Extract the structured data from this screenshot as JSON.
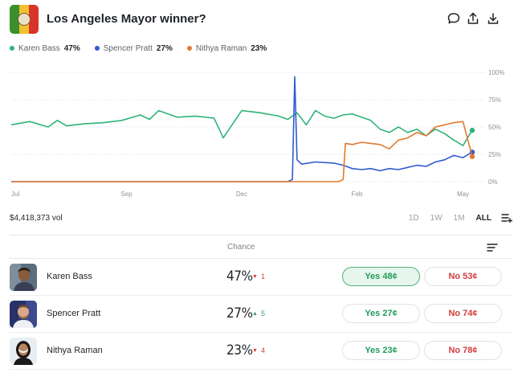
{
  "header": {
    "title": "Los Angeles Mayor winner?",
    "icons": [
      "flag-icon",
      "comment-icon",
      "share-icon",
      "download-icon"
    ]
  },
  "legend": [
    {
      "name": "Karen Bass",
      "value": "47%",
      "color": "#2fb37a"
    },
    {
      "name": "Spencer Pratt",
      "value": "27%",
      "color": "#2f5bd0"
    },
    {
      "name": "Nithya Raman",
      "value": "23%",
      "color": "#e07a2e"
    }
  ],
  "chart_data": {
    "type": "line",
    "x_tick_labels": [
      "Jul",
      "Sep",
      "Dec",
      "Feb",
      "May"
    ],
    "y_tick_labels": [
      "100%",
      "75%",
      "50%",
      "25%",
      "0%"
    ],
    "ylim": [
      0,
      100
    ],
    "grid": true,
    "series": [
      {
        "name": "Karen Bass",
        "color": "#2fb37a",
        "x": [
          0,
          4,
          8,
          10,
          12,
          16,
          20,
          24,
          28,
          30,
          32,
          36,
          40,
          44,
          46,
          50,
          54,
          58,
          60,
          62,
          64,
          66,
          68,
          70,
          72,
          74,
          78,
          80,
          82,
          84,
          86,
          88,
          90,
          92,
          94,
          96,
          98,
          100
        ],
        "values": [
          52,
          55,
          50,
          56,
          51,
          53,
          54,
          56,
          61,
          57,
          65,
          59,
          60,
          58,
          40,
          65,
          63,
          60,
          57,
          63,
          52,
          65,
          60,
          58,
          61,
          62,
          56,
          48,
          45,
          50,
          45,
          48,
          42,
          48,
          44,
          38,
          33,
          47
        ]
      },
      {
        "name": "Spencer Pratt",
        "color": "#2f5bd0",
        "x": [
          0,
          60,
          61,
          61.5,
          62,
          63,
          66,
          70,
          72,
          74,
          76,
          78,
          80,
          82,
          84,
          86,
          88,
          90,
          92,
          94,
          96,
          98,
          100
        ],
        "values": [
          0,
          0,
          2,
          96,
          20,
          16,
          18,
          17,
          15,
          12,
          11,
          12,
          10,
          12,
          11,
          13,
          15,
          14,
          18,
          20,
          24,
          22,
          27
        ]
      },
      {
        "name": "Nithya Raman",
        "color": "#e07a2e",
        "x": [
          0,
          71,
          72,
          72.5,
          74,
          76,
          78,
          80,
          82,
          84,
          86,
          88,
          90,
          92,
          94,
          96,
          98,
          100
        ],
        "values": [
          0,
          0,
          2,
          35,
          34,
          36,
          35,
          34,
          30,
          38,
          40,
          45,
          42,
          50,
          52,
          54,
          55,
          23
        ]
      }
    ]
  },
  "volume": "$4,418,373 vol",
  "ranges": [
    "1D",
    "1W",
    "1M",
    "ALL"
  ],
  "active_range": "ALL",
  "table": {
    "column_header": "Chance",
    "rows": [
      {
        "name": "Karen Bass",
        "chance": "47%",
        "delta": "1",
        "direction": "down",
        "yes": "Yes 48¢",
        "no": "No 53¢",
        "yes_selected": true
      },
      {
        "name": "Spencer Pratt",
        "chance": "27%",
        "delta": "5",
        "direction": "up",
        "yes": "Yes 27¢",
        "no": "No 74¢",
        "yes_selected": false
      },
      {
        "name": "Nithya Raman",
        "chance": "23%",
        "delta": "4",
        "direction": "down",
        "yes": "Yes 23¢",
        "no": "No 78¢",
        "yes_selected": false
      }
    ]
  }
}
